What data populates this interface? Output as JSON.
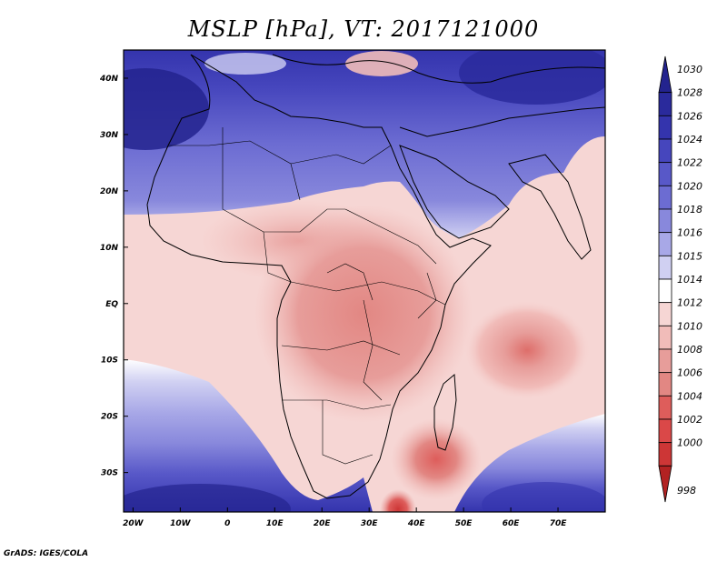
{
  "title": "MSLP [hPa], VT: 2017121000",
  "credit": "GrADS: IGES/COLA",
  "map": {
    "lon_range": [
      -22,
      80
    ],
    "lat_range": [
      -37,
      45
    ],
    "lon_ticks": [
      {
        "value": -20,
        "label": "20W"
      },
      {
        "value": -10,
        "label": "10W"
      },
      {
        "value": 0,
        "label": "0"
      },
      {
        "value": 10,
        "label": "10E"
      },
      {
        "value": 20,
        "label": "20E"
      },
      {
        "value": 30,
        "label": "30E"
      },
      {
        "value": 40,
        "label": "40E"
      },
      {
        "value": 50,
        "label": "50E"
      },
      {
        "value": 60,
        "label": "60E"
      },
      {
        "value": 70,
        "label": "70E"
      }
    ],
    "lat_ticks": [
      {
        "value": 40,
        "label": "40N"
      },
      {
        "value": 30,
        "label": "30N"
      },
      {
        "value": 20,
        "label": "20N"
      },
      {
        "value": 10,
        "label": "10N"
      },
      {
        "value": 0,
        "label": "EQ"
      },
      {
        "value": -10,
        "label": "10S"
      },
      {
        "value": -20,
        "label": "20S"
      },
      {
        "value": -30,
        "label": "30S"
      }
    ]
  },
  "colorbar": {
    "levels": [
      {
        "label": "1030",
        "color": "#23238e"
      },
      {
        "label": "1028",
        "color": "#2a2a9c"
      },
      {
        "label": "1026",
        "color": "#3434ad"
      },
      {
        "label": "1024",
        "color": "#4646bd"
      },
      {
        "label": "1022",
        "color": "#5858c8"
      },
      {
        "label": "1020",
        "color": "#6c6cd2"
      },
      {
        "label": "1018",
        "color": "#8888dc"
      },
      {
        "label": "1016",
        "color": "#a8a8e7"
      },
      {
        "label": "1015",
        "color": "#d0d0f2"
      },
      {
        "label": "1014",
        "color": "#ffffff"
      },
      {
        "label": "1012",
        "color": "#f6d6d4"
      },
      {
        "label": "1010",
        "color": "#f1bcb9"
      },
      {
        "label": "1008",
        "color": "#e79d9a"
      },
      {
        "label": "1006",
        "color": "#e28783"
      },
      {
        "label": "1004",
        "color": "#de5d5b"
      },
      {
        "label": "1002",
        "color": "#da4848"
      },
      {
        "label": "1000",
        "color": "#cd3636"
      },
      {
        "label": "998",
        "color": "#b22222"
      }
    ]
  }
}
